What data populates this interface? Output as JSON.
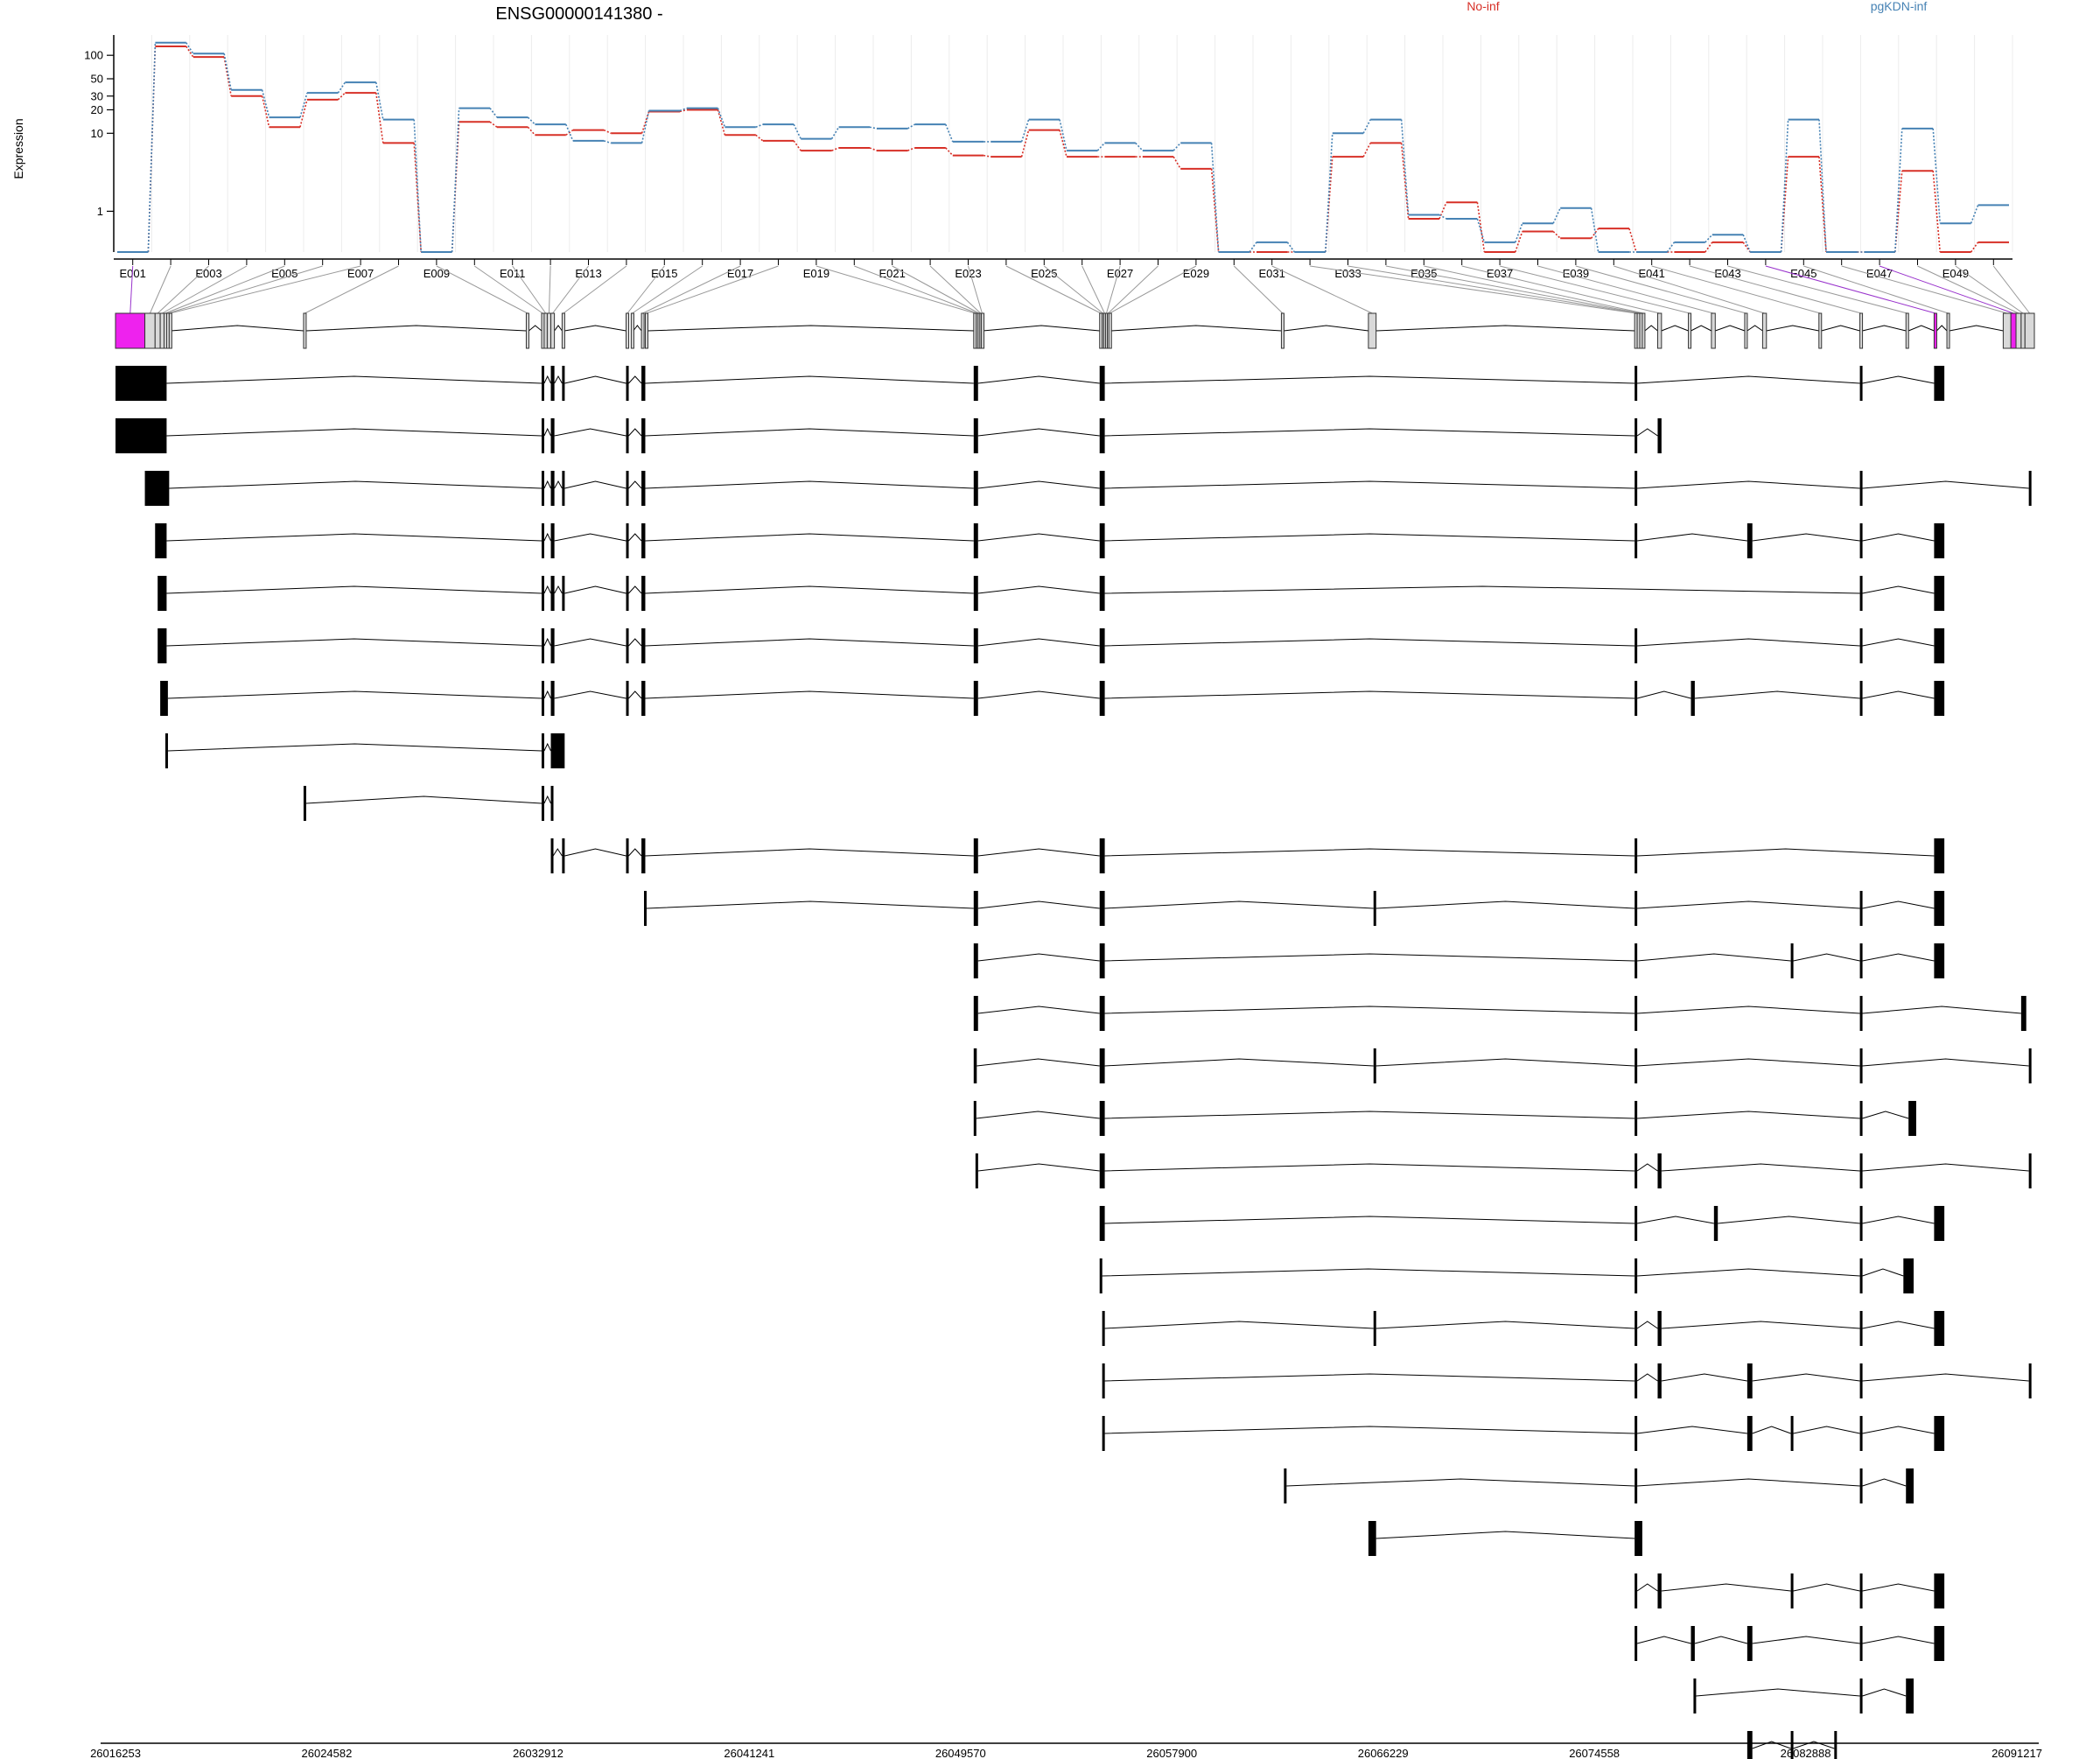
{
  "chart_data": {
    "type": "line",
    "title": "ENSG00000141380 -",
    "ylabel": "Expression",
    "xlabel": "",
    "yscale": "log",
    "ylim": [
      0.3,
      160
    ],
    "y_ticks": [
      "1",
      "10",
      "20",
      "30",
      "50",
      "100"
    ],
    "y_tick_values": [
      1,
      10,
      20,
      30,
      50,
      100
    ],
    "grid": "vertical",
    "legend_position": "top-right",
    "series": [
      {
        "name": "No-inf",
        "color": "#d73027",
        "values": [
          0.3,
          130,
          95,
          30,
          12,
          27,
          33,
          7.5,
          0.3,
          14,
          12,
          9.5,
          11,
          10,
          19,
          20,
          9.5,
          8,
          6,
          6.5,
          6,
          6.5,
          5.2,
          5,
          11,
          5,
          5,
          5,
          3.5,
          0.3,
          0.3,
          0.3,
          5,
          7.5,
          0.8,
          1.3,
          0.3,
          0.55,
          0.45,
          0.6,
          0.3,
          0.3,
          0.4,
          0.3,
          5,
          0.3,
          0.3,
          3.3,
          0.3,
          0.4
        ]
      },
      {
        "name": "pgKDN-inf",
        "color": "#4682b4",
        "values": [
          0.3,
          145,
          105,
          36,
          16,
          33,
          45,
          15,
          0.3,
          21,
          16,
          13,
          8,
          7.5,
          19.5,
          21,
          12,
          13,
          8.5,
          12,
          11.5,
          13,
          7.8,
          7.8,
          15,
          6,
          7.5,
          6,
          7.5,
          0.3,
          0.4,
          0.3,
          10,
          15,
          0.9,
          0.8,
          0.4,
          0.7,
          1.1,
          0.3,
          0.3,
          0.4,
          0.5,
          0.3,
          15,
          0.3,
          0.3,
          11.5,
          0.7,
          1.2
        ]
      }
    ],
    "exon_labels": [
      "E001",
      "E003",
      "E005",
      "E007",
      "E009",
      "E011",
      "E013",
      "E015",
      "E017",
      "E019",
      "E021",
      "E023",
      "E025",
      "E027",
      "E029",
      "E031",
      "E033",
      "E035",
      "E037",
      "E039",
      "E041",
      "E043",
      "E045",
      "E047",
      "E049"
    ],
    "exon_count": 50,
    "genomic_coordinates": [
      "26016253",
      "26024582",
      "26032912",
      "26041241",
      "26049570",
      "26057900",
      "26066229",
      "26074558",
      "26082888",
      "26091217"
    ],
    "gene_start": 26016253,
    "gene_end": 26091217,
    "exon_spans": [
      [
        26016253,
        26017400
      ],
      [
        26017400,
        26017800
      ],
      [
        26017800,
        26018000
      ],
      [
        26018000,
        26018150
      ],
      [
        26018150,
        26018250
      ],
      [
        26018250,
        26018350
      ],
      [
        26018350,
        26018420
      ],
      [
        26023600,
        26023700
      ],
      [
        26032300,
        26032400
      ],
      [
        26032900,
        26032980
      ],
      [
        26033000,
        26033120
      ],
      [
        26033120,
        26033260
      ],
      [
        26033260,
        26033400
      ],
      [
        26033700,
        26033800
      ],
      [
        26036200,
        26036300
      ],
      [
        26036400,
        26036480
      ],
      [
        26036800,
        26036900
      ],
      [
        26036950,
        26037050
      ],
      [
        26049780,
        26049880
      ],
      [
        26049880,
        26049950
      ],
      [
        26049950,
        26050020
      ],
      [
        26050020,
        26050080
      ],
      [
        26050080,
        26050140
      ],
      [
        26054700,
        26054800
      ],
      [
        26054800,
        26054860
      ],
      [
        26054860,
        26054930
      ],
      [
        26054930,
        26055000
      ],
      [
        26055000,
        26055060
      ],
      [
        26055060,
        26055120
      ],
      [
        26061800,
        26061900
      ],
      [
        26065200,
        26065500
      ],
      [
        26075600,
        26075700
      ],
      [
        26075700,
        26075800
      ],
      [
        26075800,
        26075900
      ],
      [
        26075900,
        26076000
      ],
      [
        26076500,
        26076650
      ],
      [
        26077700,
        26077800
      ],
      [
        26078600,
        26078750
      ],
      [
        26079900,
        26080000
      ],
      [
        26080600,
        26080750
      ],
      [
        26082800,
        26082900
      ],
      [
        26084400,
        26084500
      ],
      [
        26086200,
        26086300
      ],
      [
        26087300,
        26087400
      ],
      [
        26087800,
        26087900
      ],
      [
        26090000,
        26090300
      ],
      [
        26090300,
        26090500
      ],
      [
        26090500,
        26090700
      ],
      [
        26090700,
        26090850
      ],
      [
        26090850,
        26091217
      ]
    ],
    "highlighted_exons": [
      1,
      44,
      47
    ],
    "highlight_color": "#ee22ee",
    "transcripts": [
      [
        [
          26016253,
          26018250
        ],
        [
          26032900,
          26033000
        ],
        [
          26033260,
          26033400
        ],
        [
          26033700,
          26033800
        ],
        [
          26036200,
          26036300
        ],
        [
          26036800,
          26036950
        ],
        [
          26049780,
          26049950
        ],
        [
          26054700,
          26054900
        ],
        [
          26075600,
          26075700
        ],
        [
          26084400,
          26084500
        ],
        [
          26087300,
          26087700
        ]
      ],
      [
        [
          26016253,
          26018250
        ],
        [
          26032900,
          26033000
        ],
        [
          26033260,
          26033400
        ],
        [
          26036200,
          26036300
        ],
        [
          26036800,
          26036950
        ],
        [
          26049780,
          26049950
        ],
        [
          26054700,
          26054900
        ],
        [
          26075600,
          26075700
        ],
        [
          26076500,
          26076650
        ]
      ],
      [
        [
          26017400,
          26018350
        ],
        [
          26032900,
          26033000
        ],
        [
          26033260,
          26033400
        ],
        [
          26033700,
          26033800
        ],
        [
          26036200,
          26036300
        ],
        [
          26036800,
          26036950
        ],
        [
          26049780,
          26049950
        ],
        [
          26054700,
          26054900
        ],
        [
          26075600,
          26075700
        ],
        [
          26084400,
          26084500
        ],
        [
          26091000,
          26091100
        ]
      ],
      [
        [
          26017800,
          26018250
        ],
        [
          26032900,
          26033000
        ],
        [
          26033260,
          26033400
        ],
        [
          26036200,
          26036300
        ],
        [
          26036800,
          26036950
        ],
        [
          26049780,
          26049950
        ],
        [
          26054700,
          26054900
        ],
        [
          26075600,
          26075700
        ],
        [
          26080000,
          26080200
        ],
        [
          26084400,
          26084500
        ],
        [
          26087300,
          26087700
        ]
      ],
      [
        [
          26017900,
          26018250
        ],
        [
          26032900,
          26033000
        ],
        [
          26033260,
          26033400
        ],
        [
          26033700,
          26033800
        ],
        [
          26036200,
          26036300
        ],
        [
          26036800,
          26036950
        ],
        [
          26049780,
          26049950
        ],
        [
          26054700,
          26054900
        ],
        [
          26084400,
          26084500
        ],
        [
          26087300,
          26087700
        ]
      ],
      [
        [
          26017900,
          26018250
        ],
        [
          26032900,
          26033000
        ],
        [
          26033260,
          26033400
        ],
        [
          26036200,
          26036300
        ],
        [
          26036800,
          26036950
        ],
        [
          26049780,
          26049950
        ],
        [
          26054700,
          26054900
        ],
        [
          26075600,
          26075700
        ],
        [
          26084400,
          26084500
        ],
        [
          26087300,
          26087700
        ]
      ],
      [
        [
          26018000,
          26018300
        ],
        [
          26032900,
          26033000
        ],
        [
          26033260,
          26033400
        ],
        [
          26036200,
          26036300
        ],
        [
          26036800,
          26036950
        ],
        [
          26049780,
          26049950
        ],
        [
          26054700,
          26054900
        ],
        [
          26075600,
          26075700
        ],
        [
          26077800,
          26077950
        ],
        [
          26084400,
          26084500
        ],
        [
          26087300,
          26087700
        ]
      ],
      [
        [
          26018200,
          26018300
        ],
        [
          26032900,
          26033000
        ],
        [
          26033260,
          26033800
        ]
      ],
      [
        [
          26023600,
          26023700
        ],
        [
          26032900,
          26033000
        ],
        [
          26033260,
          26033350
        ]
      ],
      [
        [
          26033260,
          26033350
        ],
        [
          26033700,
          26033800
        ],
        [
          26036200,
          26036300
        ],
        [
          26036800,
          26036950
        ],
        [
          26049780,
          26049950
        ],
        [
          26054700,
          26054900
        ],
        [
          26075600,
          26075700
        ],
        [
          26087300,
          26087700
        ]
      ],
      [
        [
          26036900,
          26037000
        ],
        [
          26049780,
          26049950
        ],
        [
          26054700,
          26054900
        ],
        [
          26065400,
          26065500
        ],
        [
          26075600,
          26075700
        ],
        [
          26084400,
          26084500
        ],
        [
          26087300,
          26087700
        ]
      ],
      [
        [
          26049780,
          26049950
        ],
        [
          26054700,
          26054900
        ],
        [
          26075600,
          26075700
        ],
        [
          26081700,
          26081800
        ],
        [
          26084400,
          26084500
        ],
        [
          26087300,
          26087700
        ]
      ],
      [
        [
          26049780,
          26049950
        ],
        [
          26054700,
          26054900
        ],
        [
          26075600,
          26075700
        ],
        [
          26084400,
          26084500
        ],
        [
          26090700,
          26090900
        ]
      ],
      [
        [
          26049780,
          26049900
        ],
        [
          26054700,
          26054900
        ],
        [
          26065400,
          26065500
        ],
        [
          26075600,
          26075700
        ],
        [
          26084400,
          26084500
        ],
        [
          26091000,
          26091100
        ]
      ],
      [
        [
          26049780,
          26049880
        ],
        [
          26054700,
          26054900
        ],
        [
          26075600,
          26075700
        ],
        [
          26084400,
          26084500
        ],
        [
          26086300,
          26086600
        ]
      ],
      [
        [
          26049850,
          26049950
        ],
        [
          26054700,
          26054900
        ],
        [
          26075600,
          26075700
        ],
        [
          26076500,
          26076650
        ],
        [
          26084400,
          26084500
        ],
        [
          26091000,
          26091100
        ]
      ],
      [
        [
          26054700,
          26054900
        ],
        [
          26075600,
          26075700
        ],
        [
          26078700,
          26078850
        ],
        [
          26084400,
          26084500
        ],
        [
          26087300,
          26087700
        ]
      ],
      [
        [
          26054700,
          26054800
        ],
        [
          26075600,
          26075700
        ],
        [
          26084400,
          26084500
        ],
        [
          26086100,
          26086500
        ]
      ],
      [
        [
          26054800,
          26054900
        ],
        [
          26065400,
          26065500
        ],
        [
          26075600,
          26075700
        ],
        [
          26076500,
          26076650
        ],
        [
          26084400,
          26084500
        ],
        [
          26087300,
          26087700
        ]
      ],
      [
        [
          26054800,
          26054900
        ],
        [
          26075600,
          26075700
        ],
        [
          26076500,
          26076650
        ],
        [
          26080000,
          26080200
        ],
        [
          26084400,
          26084500
        ],
        [
          26091000,
          26091100
        ]
      ],
      [
        [
          26054800,
          26054900
        ],
        [
          26075600,
          26075700
        ],
        [
          26080000,
          26080200
        ],
        [
          26081700,
          26081800
        ],
        [
          26084400,
          26084500
        ],
        [
          26087300,
          26087700
        ]
      ],
      [
        [
          26061900,
          26062000
        ],
        [
          26075600,
          26075700
        ],
        [
          26084400,
          26084500
        ],
        [
          26086200,
          26086500
        ]
      ],
      [
        [
          26065200,
          26065500
        ],
        [
          26075600,
          26075900
        ]
      ],
      [
        [
          26075600,
          26075700
        ],
        [
          26076500,
          26076650
        ],
        [
          26081700,
          26081800
        ],
        [
          26084400,
          26084500
        ],
        [
          26087300,
          26087700
        ]
      ],
      [
        [
          26075600,
          26075700
        ],
        [
          26077800,
          26077950
        ],
        [
          26080000,
          26080200
        ],
        [
          26084400,
          26084500
        ],
        [
          26087300,
          26087700
        ]
      ],
      [
        [
          26077900,
          26078000
        ],
        [
          26084400,
          26084500
        ],
        [
          26086200,
          26086500
        ]
      ],
      [
        [
          26080000,
          26080200
        ],
        [
          26081700,
          26081800
        ],
        [
          26083400,
          26083500
        ]
      ]
    ]
  }
}
